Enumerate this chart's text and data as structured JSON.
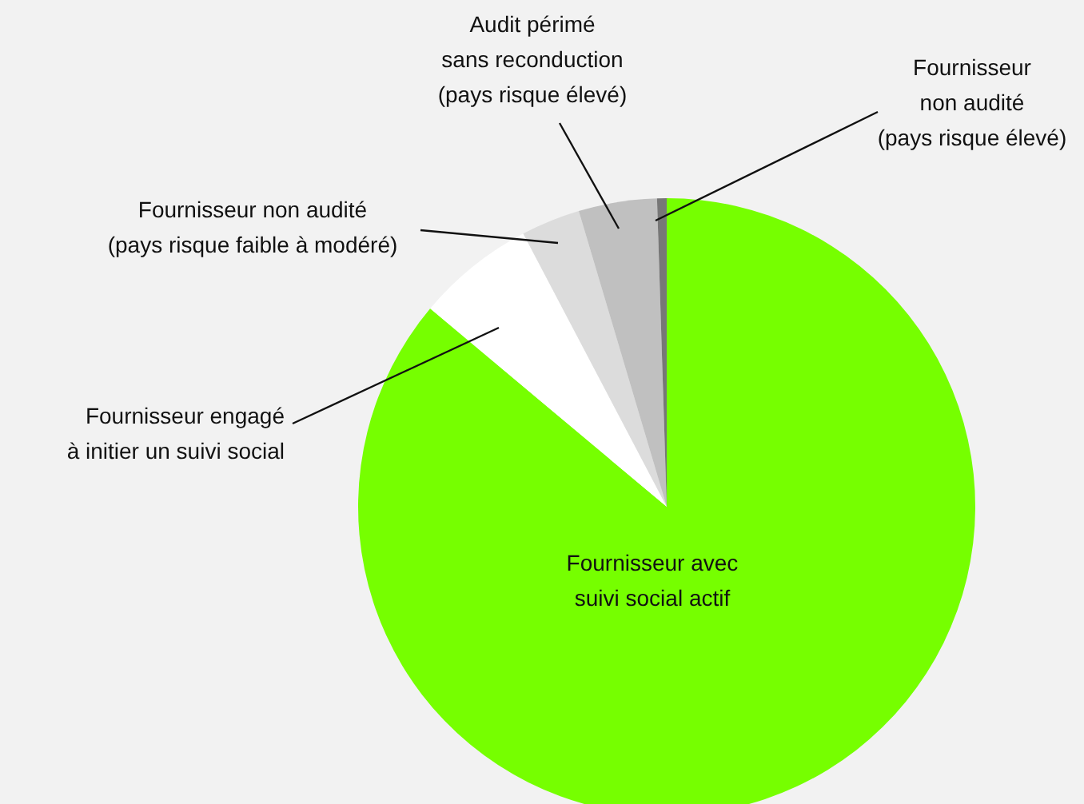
{
  "chart_data": {
    "type": "pie",
    "categories": [
      "Fournisseur avec suivi social actif",
      "Fournisseur engagé à initier un suivi social",
      "Fournisseur non audité (pays risque faible à modéré)",
      "Audit périmé sans reconduction (pays risque élevé)",
      "Fournisseur non audité (pays risque élevé)"
    ],
    "values": [
      86.1,
      6.2,
      3.1,
      4.1,
      0.5
    ],
    "colors": [
      "#76ff00",
      "#ffffff",
      "#dcdcdc",
      "#c0c0c0",
      "#777777"
    ],
    "legend": false
  }
}
